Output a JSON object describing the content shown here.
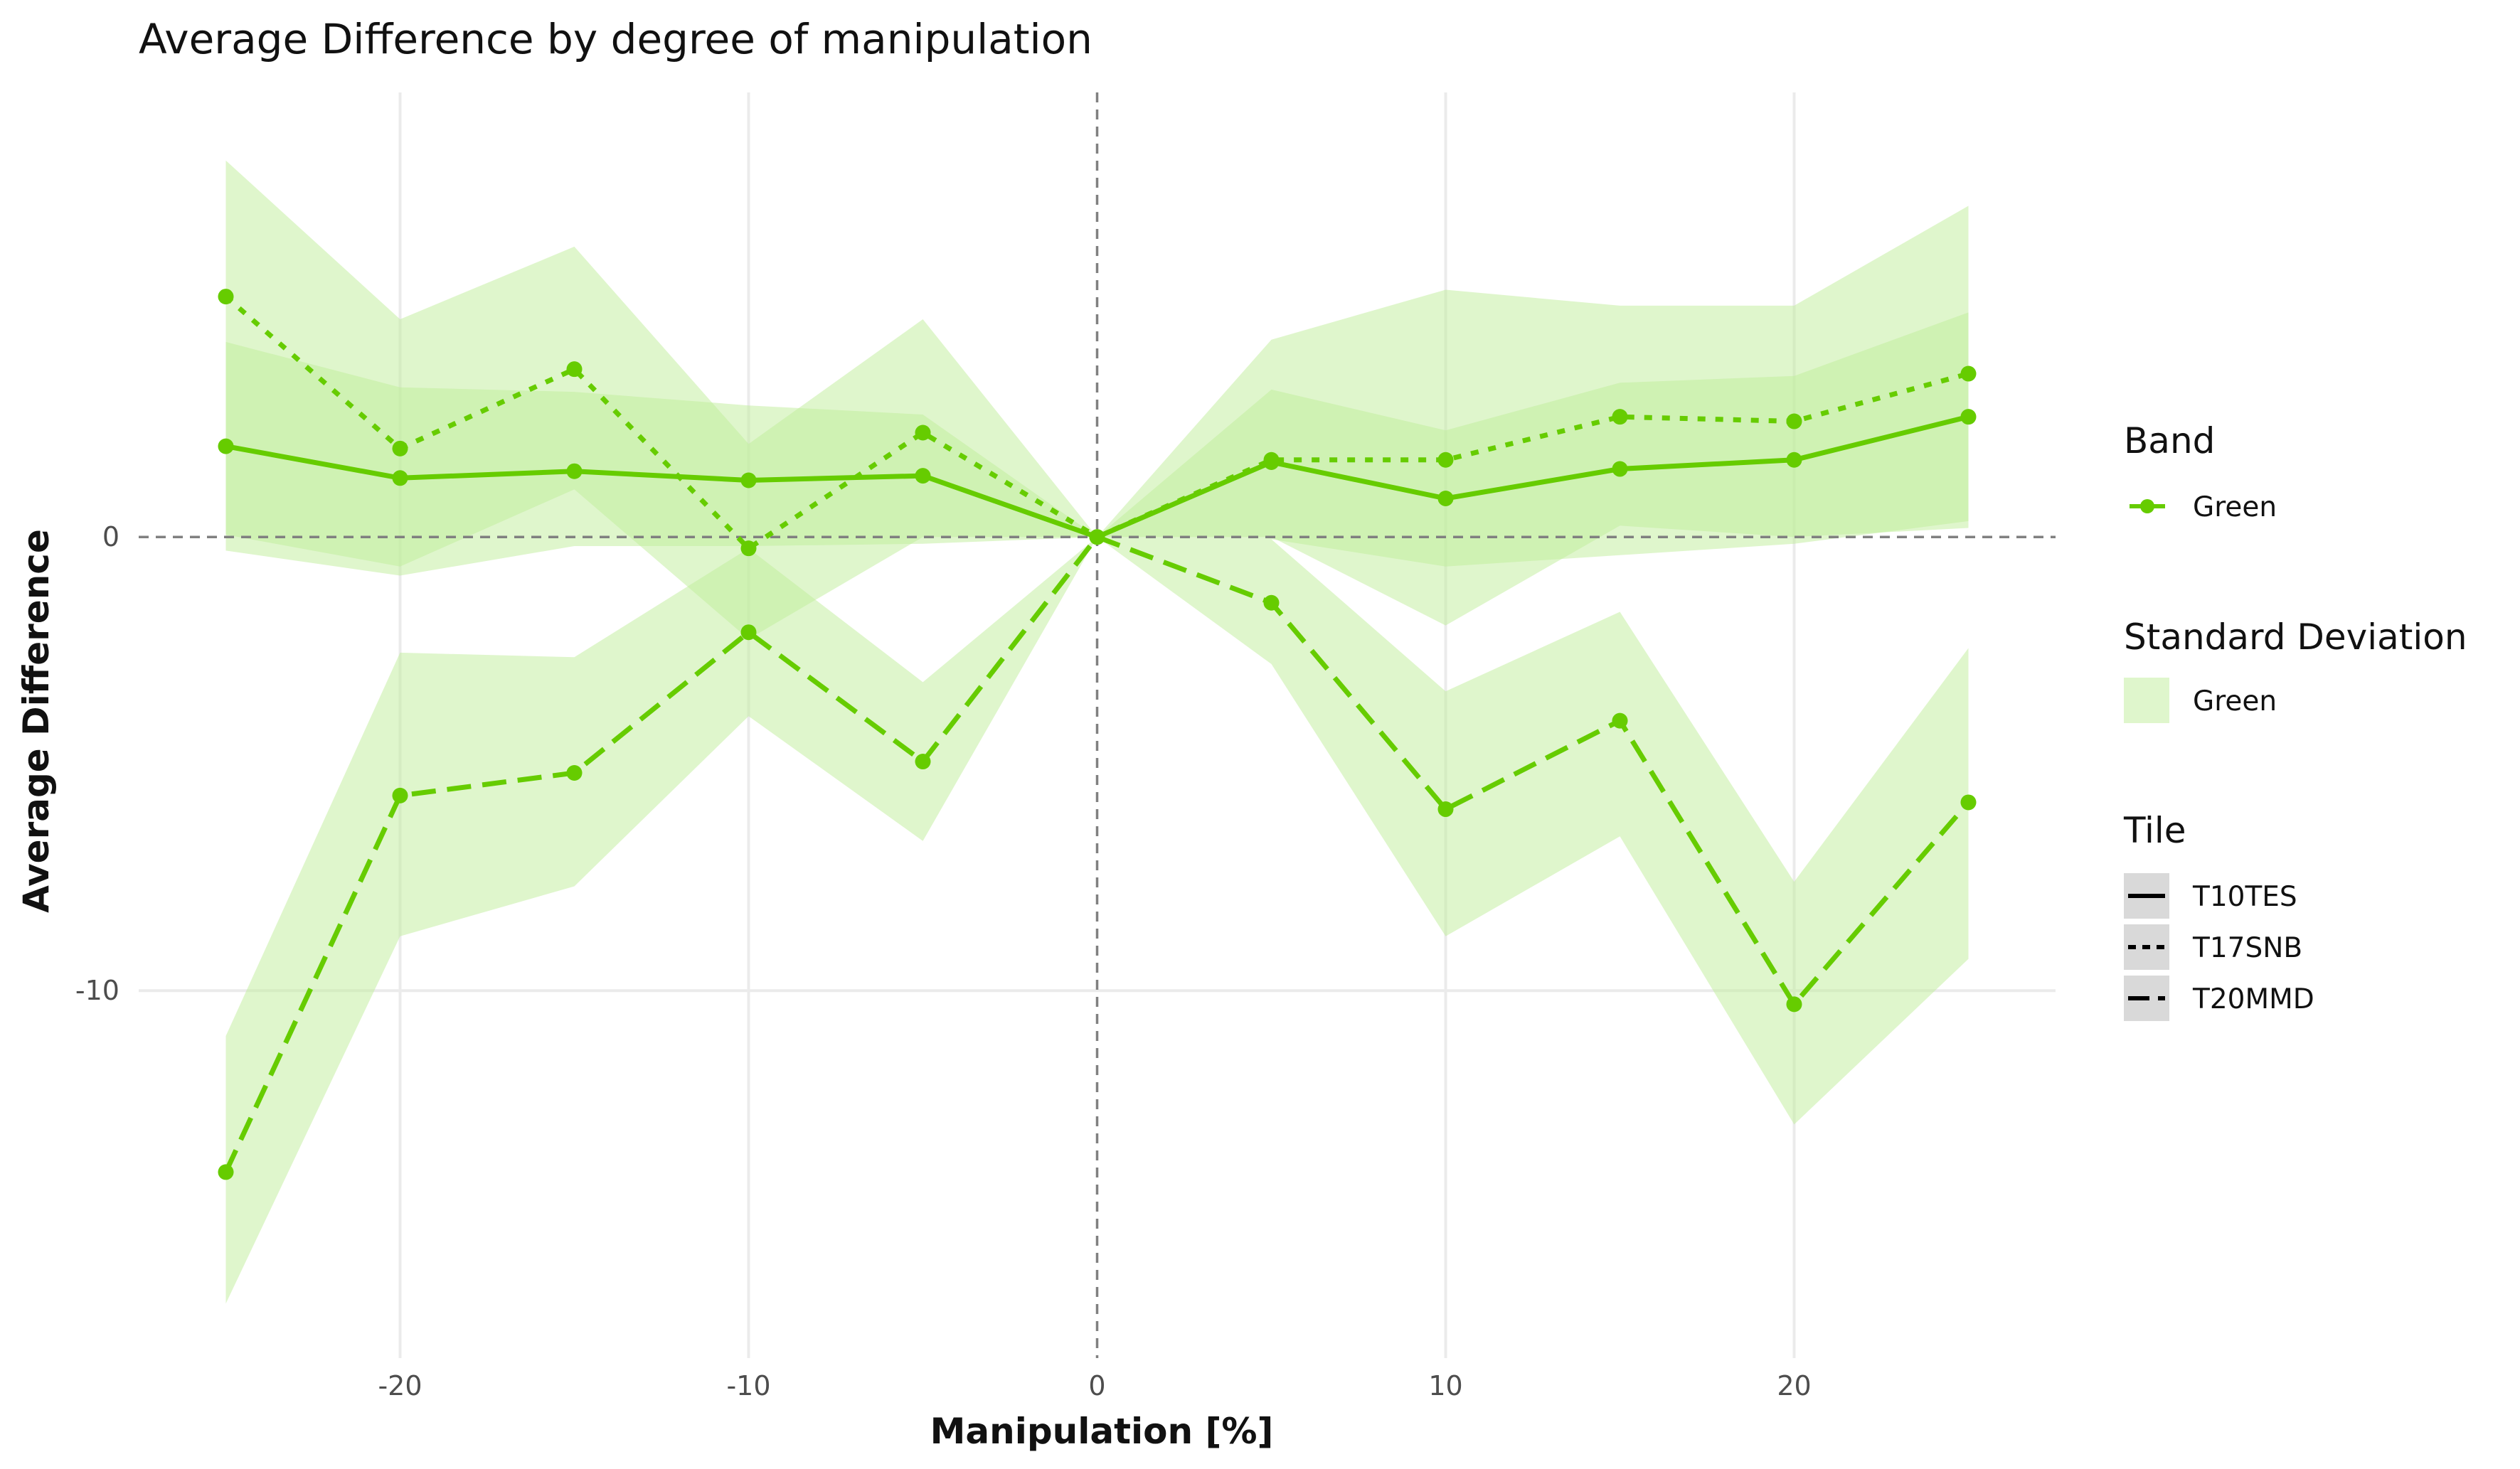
{
  "chart_data": {
    "type": "line",
    "title": "Average Difference by degree of manipulation",
    "xlabel": "Manipulation [%]",
    "ylabel": "Average Difference",
    "xlim": [
      -27.5,
      27.5
    ],
    "ylim": [
      -18.1,
      9.8
    ],
    "x_ticks": [
      -20,
      -10,
      0,
      10,
      20
    ],
    "x_tick_labels": [
      "-20",
      "-10",
      "0",
      "10",
      "20"
    ],
    "y_ticks": [
      0,
      -10
    ],
    "y_tick_labels": [
      "0",
      "-10"
    ],
    "grid": true,
    "reference_lines": {
      "x": 0,
      "y": 0,
      "style": "dashed"
    },
    "legend_position": "right",
    "colors": {
      "line": "#66cc00",
      "band": "#bfee99",
      "grid": "#ebebeb",
      "ref": "#808080"
    },
    "x": [
      -25,
      -20,
      -15,
      -10,
      -5,
      0,
      5,
      10,
      15,
      20,
      25
    ],
    "series": [
      {
        "name": "T10TES",
        "band": "Green",
        "linestyle": "solid",
        "values": [
          2.0,
          1.3,
          1.45,
          1.25,
          1.35,
          0.0,
          1.65,
          0.85,
          1.5,
          1.7,
          2.65
        ],
        "sd_lower": [
          -0.3,
          -0.85,
          -0.2,
          -0.2,
          -0.15,
          0.0,
          -0.05,
          -0.65,
          -0.4,
          -0.15,
          0.35
        ],
        "sd_upper": [
          4.3,
          3.3,
          3.2,
          2.9,
          2.7,
          0.0,
          3.25,
          2.35,
          3.4,
          3.55,
          4.95
        ]
      },
      {
        "name": "T17SNB",
        "band": "Green",
        "linestyle": "dotted",
        "values": [
          5.3,
          1.95,
          3.7,
          -0.25,
          2.3,
          0.0,
          1.7,
          1.7,
          2.65,
          2.55,
          3.6
        ],
        "sd_lower": [
          0.05,
          -0.65,
          1.05,
          -2.25,
          0.0,
          0.0,
          0.0,
          -1.95,
          0.25,
          0.0,
          0.2
        ],
        "sd_upper": [
          8.3,
          4.8,
          6.4,
          2.05,
          4.8,
          0.0,
          4.35,
          5.45,
          5.1,
          5.1,
          7.3
        ]
      },
      {
        "name": "T20MMD",
        "band": "Green",
        "linestyle": "dashed",
        "values": [
          -14.0,
          -5.7,
          -5.2,
          -2.1,
          -4.95,
          0.0,
          -1.45,
          -6.0,
          -4.05,
          -10.3,
          -5.85
        ],
        "sd_lower": [
          -16.9,
          -8.8,
          -7.7,
          -3.95,
          -6.7,
          0.0,
          -2.8,
          -8.8,
          -6.6,
          -12.95,
          -9.3
        ],
        "sd_upper": [
          -11.0,
          -2.55,
          -2.65,
          -0.25,
          -3.2,
          0.0,
          -0.05,
          -3.4,
          -1.65,
          -7.6,
          -2.45
        ]
      }
    ],
    "legend": {
      "band": {
        "title": "Band",
        "items": [
          "Green"
        ]
      },
      "sd": {
        "title": "Standard Deviation",
        "items": [
          "Green"
        ]
      },
      "tile": {
        "title": "Tile",
        "items": [
          "T10TES",
          "T17SNB",
          "T20MMD"
        ]
      }
    }
  }
}
